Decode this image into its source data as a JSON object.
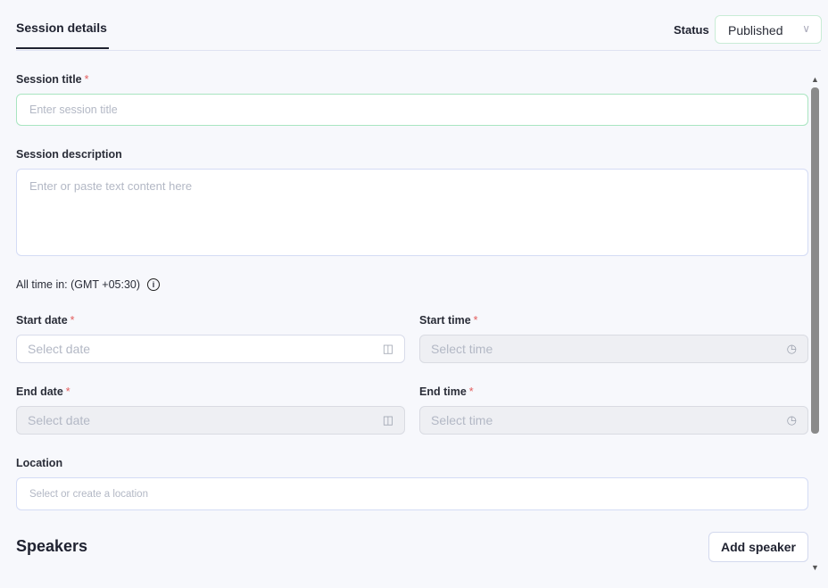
{
  "header": {
    "tab": "Session details",
    "status_label": "Status",
    "status_value": "Published"
  },
  "form": {
    "title_label": "Session title",
    "title_placeholder": "Enter session title",
    "description_label": "Session description",
    "description_placeholder": "Enter or paste text content here",
    "timezone_note": "All time in: (GMT +05:30)",
    "start_date_label": "Start date",
    "start_date_placeholder": "Select date",
    "start_time_label": "Start time",
    "start_time_placeholder": "Select time",
    "end_date_label": "End date",
    "end_date_placeholder": "Select date",
    "end_time_label": "End time",
    "end_time_placeholder": "Select time",
    "location_label": "Location",
    "location_placeholder": "Select or create a location",
    "required_mark": "*"
  },
  "speakers": {
    "heading": "Speakers",
    "add_button": "Add speaker"
  }
}
